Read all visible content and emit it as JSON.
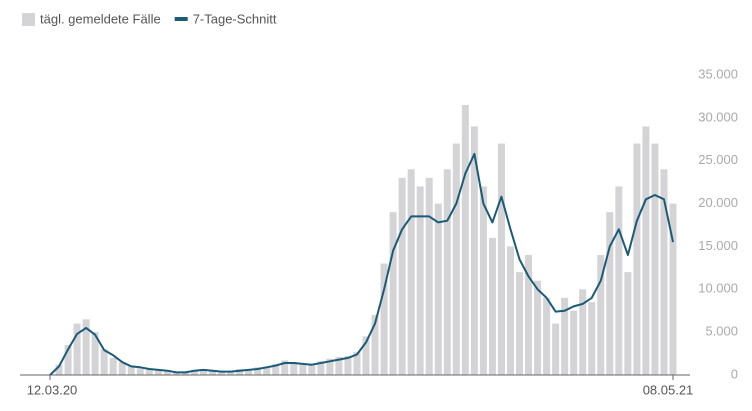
{
  "chart_data": {
    "type": "bar",
    "categories": [
      "12.03.20",
      null,
      null,
      null,
      null,
      null,
      null,
      null,
      null,
      null,
      null,
      null,
      null,
      null,
      null,
      null,
      null,
      null,
      null,
      null,
      null,
      null,
      null,
      null,
      null,
      null,
      null,
      null,
      null,
      null,
      null,
      null,
      null,
      null,
      null,
      null,
      null,
      null,
      null,
      null,
      null,
      null,
      null,
      null,
      null,
      null,
      null,
      null,
      null,
      null,
      null,
      null,
      null,
      null,
      null,
      null,
      null,
      null,
      null,
      null,
      null,
      null,
      null,
      null,
      null,
      null,
      null,
      null,
      null,
      "08.05.21"
    ],
    "series": [
      {
        "name": "tägl. gemeldete Fälle",
        "type": "bar",
        "color": "#d4d4d7",
        "values": [
          0,
          1200,
          3500,
          6000,
          6500,
          5000,
          3000,
          2000,
          1500,
          1100,
          800,
          700,
          500,
          600,
          300,
          400,
          600,
          700,
          400,
          500,
          300,
          700,
          500,
          900,
          1000,
          1300,
          1700,
          1500,
          1200,
          1300,
          1600,
          1900,
          2100,
          2200,
          2700,
          4500,
          7000,
          13000,
          19000,
          23000,
          24000,
          22000,
          23000,
          20000,
          24000,
          27000,
          31500,
          29000,
          22000,
          16000,
          27000,
          15000,
          12000,
          14000,
          11000,
          9000,
          6000,
          9000,
          7500,
          10000,
          8500,
          14000,
          19000,
          22000,
          12000,
          27000,
          29000,
          27000,
          24000,
          20000
        ]
      },
      {
        "name": "7-Tage-Schnitt",
        "type": "line",
        "color": "#1b5b78",
        "values": [
          0,
          1000,
          3000,
          4800,
          5500,
          4700,
          2900,
          2300,
          1500,
          1000,
          900,
          700,
          600,
          500,
          300,
          300,
          500,
          600,
          500,
          400,
          400,
          500,
          600,
          700,
          900,
          1100,
          1400,
          1400,
          1300,
          1200,
          1400,
          1600,
          1800,
          2000,
          2400,
          3800,
          6000,
          10000,
          14500,
          17000,
          18500,
          18500,
          18500,
          17800,
          18000,
          20000,
          23500,
          25800,
          20000,
          17800,
          20800,
          17000,
          13500,
          11500,
          10000,
          9000,
          7400,
          7500,
          8000,
          8300,
          9000,
          11000,
          15000,
          17000,
          14000,
          18000,
          20500,
          21000,
          20500,
          15500
        ]
      }
    ],
    "ylim": [
      0,
      35000
    ],
    "yticks": [
      0,
      {
        "value": 5000,
        "label": "5.000"
      },
      {
        "value": 10000,
        "label": "10.000"
      },
      {
        "value": 15000,
        "label": "15.000"
      },
      {
        "value": 20000,
        "label": "20.000"
      },
      {
        "value": 25000,
        "label": "25.000"
      },
      {
        "value": 30000,
        "label": "30.000"
      },
      {
        "value": 35000,
        "label": "35.000"
      }
    ],
    "grid": false
  }
}
